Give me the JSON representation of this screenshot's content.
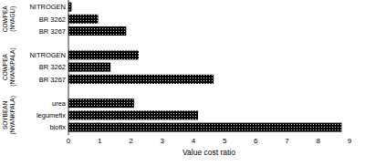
{
  "chart_data": {
    "type": "bar",
    "orientation": "horizontal",
    "x_label": "Value cost ratio",
    "color": "#000000",
    "groups": [
      {
        "name": "COWPEA (NYAGLI)",
        "categories": [
          "NITROGEN",
          "BR 3262",
          "BR 3267"
        ],
        "values": [
          0.1,
          0.95,
          1.85
        ]
      },
      {
        "name": "COWPEA (NYANKPALA)",
        "categories": [
          "NITROGEN",
          "BR 3262",
          "BR 3267"
        ],
        "values": [
          2.25,
          1.35,
          4.65
        ]
      },
      {
        "name": "SOYBEAN (NYANKPALA)",
        "categories": [
          "urea",
          "legumefix",
          "biofix"
        ],
        "values": [
          2.1,
          4.15,
          8.75
        ]
      }
    ],
    "xlim": [
      0,
      9
    ],
    "xticks": [
      0,
      1,
      2,
      3,
      4,
      5,
      6,
      7,
      8,
      9
    ],
    "grid": false
  }
}
